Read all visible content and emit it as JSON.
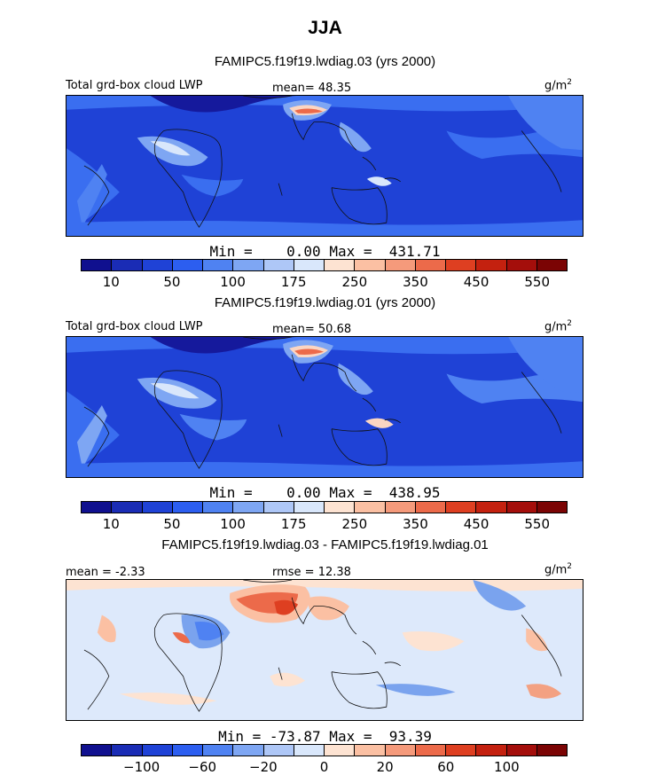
{
  "header": {
    "season": "JJA"
  },
  "colors": {
    "bg": "#1f42d6",
    "deep": "#15199c",
    "mid": "#3a6ef0",
    "light": "#7ea6f3",
    "pale": "#d9e7fb",
    "warm": "#fbd6c2",
    "hot": "#ec6a4a",
    "diff_bg": "#dde9fb",
    "diff_red": "#f3a182",
    "diff_blue": "#7aa3ee",
    "land": "#111111"
  },
  "chart_data": [
    {
      "type": "heatmap",
      "panel": "test_case",
      "title": "FAMIPC5.f19f19.lwdiag.03 (yrs 2000)",
      "label": "Total grd-box cloud LWP",
      "mean_text": "mean=  48.35",
      "units": "g/m",
      "units_exp": "2",
      "mean": 48.35,
      "min": 0.0,
      "max": 431.71,
      "minmax_text": "Min =    0.00 Max =  431.71",
      "levels": [
        10,
        25,
        50,
        75,
        100,
        125,
        175,
        200,
        250,
        300,
        350,
        400,
        450,
        500,
        550
      ],
      "tick_labels": [
        "10",
        "50",
        "100",
        "175",
        "250",
        "350",
        "450",
        "550"
      ],
      "colorbar": [
        "#10108f",
        "#1a2cb5",
        "#1f42d6",
        "#2c5ef0",
        "#4f82f2",
        "#7ea6f3",
        "#aec7f7",
        "#d9e7fb",
        "#fde3d2",
        "#fbc0a3",
        "#f59a7b",
        "#ec6a4a",
        "#de3f21",
        "#c4210f",
        "#a40e0b",
        "#7b0404"
      ]
    },
    {
      "type": "heatmap",
      "panel": "control_case",
      "title": "FAMIPC5.f19f19.lwdiag.01 (yrs 2000)",
      "label": "Total grd-box cloud LWP",
      "mean_text": "mean=  50.68",
      "units": "g/m",
      "units_exp": "2",
      "mean": 50.68,
      "min": 0.0,
      "max": 438.95,
      "minmax_text": "Min =    0.00 Max =  438.95",
      "levels": [
        10,
        25,
        50,
        75,
        100,
        125,
        175,
        200,
        250,
        300,
        350,
        400,
        450,
        500,
        550
      ],
      "tick_labels": [
        "10",
        "50",
        "100",
        "175",
        "250",
        "350",
        "450",
        "550"
      ],
      "colorbar": [
        "#10108f",
        "#1a2cb5",
        "#1f42d6",
        "#2c5ef0",
        "#4f82f2",
        "#7ea6f3",
        "#aec7f7",
        "#d9e7fb",
        "#fde3d2",
        "#fbc0a3",
        "#f59a7b",
        "#ec6a4a",
        "#de3f21",
        "#c4210f",
        "#a40e0b",
        "#7b0404"
      ]
    },
    {
      "type": "heatmap",
      "panel": "difference",
      "title": "FAMIPC5.f19f19.lwdiag.03 - FAMIPC5.f19f19.lwdiag.01",
      "mean_text": "mean =  -2.33",
      "rmse_text": "rmse =  12.38",
      "units": "g/m",
      "units_exp": "2",
      "mean": -2.33,
      "rmse": 12.38,
      "min": -73.87,
      "max": 93.39,
      "minmax_text": "Min = -73.87 Max =  93.39",
      "levels": [
        -120,
        -100,
        -80,
        -60,
        -40,
        -20,
        -10,
        0,
        10,
        20,
        40,
        60,
        80,
        100,
        120
      ],
      "tick_labels": [
        "-100",
        "-60",
        "-20",
        "0",
        "20",
        "60",
        "100"
      ],
      "colorbar": [
        "#10108f",
        "#1a2cb5",
        "#1f42d6",
        "#2c5ef0",
        "#4f82f2",
        "#7ea6f3",
        "#aec7f7",
        "#d9e7fb",
        "#fde3d2",
        "#fbc0a3",
        "#f59a7b",
        "#ec6a4a",
        "#de3f21",
        "#c4210f",
        "#a40e0b",
        "#7b0404"
      ]
    }
  ]
}
